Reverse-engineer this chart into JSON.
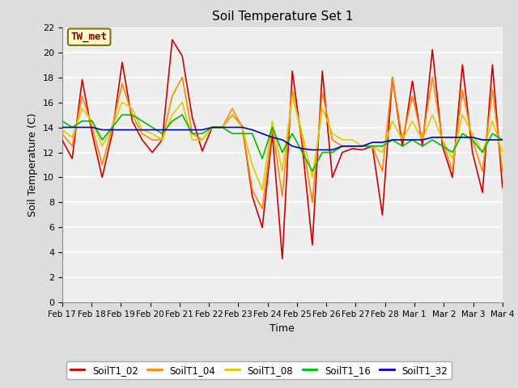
{
  "title": "Soil Temperature Set 1",
  "xlabel": "Time",
  "ylabel": "Soil Temperature (C)",
  "ylim": [
    0,
    22
  ],
  "yticks": [
    0,
    2,
    4,
    6,
    8,
    10,
    12,
    14,
    16,
    18,
    20,
    22
  ],
  "xtick_labels": [
    "Feb 17",
    "Feb 18",
    "Feb 19",
    "Feb 20",
    "Feb 21",
    "Feb 22",
    "Feb 23",
    "Feb 24",
    "Feb 25",
    "Feb 26",
    "Feb 27",
    "Feb 28",
    "Mar 1",
    "Mar 2",
    "Mar 3",
    "Mar 4"
  ],
  "annotation_text": "TW_met",
  "annotation_color": "#8B0000",
  "annotation_bg": "#FFFFCC",
  "annotation_border": "#8B6914",
  "colors": {
    "SoilT1_02": "#CC0000",
    "SoilT1_04": "#FF8800",
    "SoilT1_08": "#DDCC00",
    "SoilT1_16": "#00BB00",
    "SoilT1_32": "#0000BB"
  },
  "background_color": "#DDDDDD",
  "plot_bg": "#EEEEEE",
  "grid_color": "#FFFFFF",
  "series": {
    "SoilT1_02": [
      13.0,
      11.5,
      17.8,
      13.5,
      10.0,
      13.5,
      19.2,
      14.5,
      13.0,
      12.0,
      13.0,
      21.0,
      19.7,
      14.8,
      12.1,
      14.0,
      14.0,
      15.0,
      14.1,
      8.5,
      6.0,
      13.5,
      3.5,
      18.5,
      12.5,
      4.6,
      18.5,
      10.0,
      12.0,
      12.3,
      12.2,
      12.5,
      7.0,
      18.0,
      12.5,
      17.7,
      12.5,
      20.2,
      12.5,
      10.0,
      19.0,
      12.0,
      8.8,
      19.0,
      9.2
    ],
    "SoilT1_04": [
      13.5,
      12.5,
      16.5,
      14.0,
      11.0,
      14.0,
      17.5,
      15.0,
      13.5,
      13.0,
      13.0,
      16.5,
      18.0,
      13.5,
      13.0,
      14.0,
      14.0,
      15.5,
      14.0,
      9.0,
      7.5,
      14.0,
      8.5,
      17.0,
      13.0,
      8.0,
      16.8,
      13.0,
      12.5,
      12.5,
      12.5,
      12.5,
      10.5,
      18.0,
      13.0,
      16.5,
      13.0,
      18.0,
      13.0,
      10.5,
      17.0,
      13.0,
      10.5,
      17.0,
      10.5
    ],
    "SoilT1_08": [
      13.8,
      13.2,
      15.5,
      14.5,
      12.5,
      14.0,
      16.0,
      15.5,
      13.8,
      13.5,
      13.0,
      15.0,
      16.0,
      13.0,
      13.0,
      14.0,
      14.0,
      15.0,
      14.0,
      11.0,
      9.0,
      14.5,
      10.5,
      16.5,
      13.5,
      10.0,
      15.5,
      13.5,
      13.0,
      13.0,
      12.5,
      12.5,
      12.0,
      14.5,
      13.0,
      14.5,
      13.0,
      15.0,
      13.0,
      11.5,
      15.0,
      13.5,
      12.0,
      14.5,
      12.0
    ],
    "SoilT1_16": [
      14.5,
      14.0,
      14.5,
      14.5,
      13.0,
      14.0,
      15.0,
      15.0,
      14.5,
      14.0,
      13.5,
      14.5,
      15.0,
      13.5,
      13.5,
      14.0,
      14.0,
      13.5,
      13.5,
      13.5,
      11.5,
      14.0,
      12.0,
      13.5,
      12.0,
      10.5,
      12.0,
      12.0,
      12.5,
      12.5,
      12.5,
      12.5,
      12.5,
      13.0,
      12.5,
      13.0,
      12.5,
      13.0,
      12.5,
      12.0,
      13.5,
      13.0,
      12.0,
      13.5,
      13.0
    ],
    "SoilT1_32": [
      14.0,
      14.0,
      14.0,
      14.0,
      13.8,
      13.8,
      13.8,
      13.8,
      13.8,
      13.8,
      13.8,
      13.8,
      13.8,
      13.8,
      13.8,
      14.0,
      14.0,
      14.0,
      14.0,
      13.8,
      13.5,
      13.2,
      13.0,
      12.5,
      12.3,
      12.2,
      12.2,
      12.2,
      12.5,
      12.5,
      12.5,
      12.8,
      12.8,
      13.0,
      13.0,
      13.0,
      13.0,
      13.2,
      13.2,
      13.2,
      13.2,
      13.2,
      13.0,
      13.0,
      13.0
    ]
  }
}
